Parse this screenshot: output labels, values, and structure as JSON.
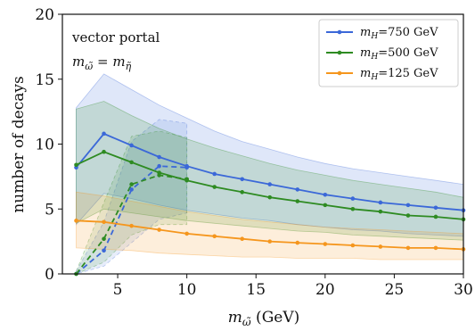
{
  "chart_data": {
    "type": "line",
    "xlabel": "m_ω̃ (GeV)",
    "xlabel_main": "m",
    "xlabel_sub": "ω̃",
    "xlabel_unit": " (GeV)",
    "ylabel": "number of decays",
    "xlim": [
      1,
      30
    ],
    "ylim": [
      0,
      20
    ],
    "xticks": [
      5,
      10,
      15,
      20,
      25,
      30
    ],
    "yticks": [
      0,
      5,
      10,
      15,
      20
    ],
    "grid": false,
    "legend_position": "top-right",
    "annotations": {
      "line1": "vector portal",
      "line2_main": "m",
      "line2_sub1": "ω̃",
      "line2_eq": " = ",
      "line2_main2": "m",
      "line2_sub2": "η̃"
    },
    "series": [
      {
        "name": "m_H=750 GeV",
        "legend_main": "m",
        "legend_sub": "H",
        "legend_value": "=750 GeV",
        "color": "#3b68d8",
        "solid": {
          "x": [
            2,
            4,
            6,
            8,
            10,
            12,
            14,
            16,
            18,
            20,
            22,
            24,
            26,
            28,
            30
          ],
          "y": [
            8.2,
            10.8,
            9.9,
            9.0,
            8.3,
            7.7,
            7.3,
            6.9,
            6.5,
            6.1,
            5.8,
            5.5,
            5.3,
            5.1,
            4.9
          ]
        },
        "dashed": {
          "x": [
            2,
            4,
            6,
            8,
            10
          ],
          "y": [
            0.0,
            1.8,
            6.5,
            8.3,
            8.2
          ]
        },
        "band_upper": {
          "x": [
            2,
            4,
            6,
            8,
            10,
            12,
            14,
            16,
            18,
            20,
            22,
            24,
            26,
            28,
            30
          ],
          "y": [
            12.8,
            15.4,
            14.2,
            13.0,
            12.0,
            11.0,
            10.2,
            9.6,
            9.0,
            8.5,
            8.1,
            7.8,
            7.5,
            7.2,
            6.9
          ]
        },
        "band_lower": {
          "x": [
            2,
            4,
            6,
            8,
            10,
            12,
            14,
            16,
            18,
            20,
            22,
            24,
            26,
            28,
            30
          ],
          "y": [
            3.8,
            6.2,
            5.8,
            5.3,
            4.9,
            4.6,
            4.3,
            4.1,
            3.8,
            3.6,
            3.4,
            3.3,
            3.1,
            3.0,
            2.9
          ]
        },
        "dband_upper": {
          "x": [
            2,
            4,
            6,
            8,
            10
          ],
          "y": [
            0.2,
            4.0,
            10.2,
            11.9,
            11.6
          ]
        },
        "dband_lower": {
          "x": [
            2,
            4,
            6,
            8,
            10
          ],
          "y": [
            0.0,
            0.6,
            2.4,
            4.2,
            4.7
          ]
        }
      },
      {
        "name": "m_H=500 GeV",
        "legend_main": "m",
        "legend_sub": "H",
        "legend_value": "=500 GeV",
        "color": "#2e8b22",
        "solid": {
          "x": [
            2,
            4,
            6,
            8,
            10,
            12,
            14,
            16,
            18,
            20,
            22,
            24,
            26,
            28,
            30
          ],
          "y": [
            8.4,
            9.4,
            8.6,
            7.8,
            7.2,
            6.7,
            6.3,
            5.9,
            5.6,
            5.3,
            5.0,
            4.8,
            4.5,
            4.4,
            4.2
          ]
        },
        "dashed": {
          "x": [
            2,
            4,
            6,
            8,
            10
          ],
          "y": [
            0.0,
            2.7,
            6.9,
            7.6,
            7.3
          ]
        },
        "band_upper": {
          "x": [
            2,
            4,
            6,
            8,
            10,
            12,
            14,
            16,
            18,
            20,
            22,
            24,
            26,
            28,
            30
          ],
          "y": [
            12.7,
            13.3,
            12.2,
            11.2,
            10.4,
            9.7,
            9.1,
            8.5,
            8.0,
            7.6,
            7.2,
            6.9,
            6.6,
            6.3,
            5.9
          ]
        },
        "band_lower": {
          "x": [
            2,
            4,
            6,
            8,
            10,
            12,
            14,
            16,
            18,
            20,
            22,
            24,
            26,
            28,
            30
          ],
          "y": [
            3.9,
            5.0,
            4.7,
            4.4,
            4.1,
            3.9,
            3.7,
            3.5,
            3.3,
            3.2,
            3.0,
            2.9,
            2.8,
            2.7,
            2.6
          ]
        },
        "dband_upper": {
          "x": [
            2,
            4,
            6,
            8,
            10
          ],
          "y": [
            0.2,
            5.5,
            10.6,
            11.0,
            10.5
          ]
        },
        "dband_lower": {
          "x": [
            2,
            4,
            6,
            8,
            10
          ],
          "y": [
            0.0,
            0.9,
            3.0,
            3.8,
            3.8
          ]
        }
      },
      {
        "name": "m_H=125 GeV",
        "legend_main": "m",
        "legend_sub": "H",
        "legend_value": "=125 GeV",
        "color": "#f5961d",
        "solid": {
          "x": [
            2,
            4,
            6,
            8,
            10,
            12,
            14,
            16,
            18,
            20,
            22,
            24,
            26,
            28,
            30
          ],
          "y": [
            4.1,
            4.0,
            3.7,
            3.4,
            3.1,
            2.9,
            2.7,
            2.5,
            2.4,
            2.3,
            2.2,
            2.1,
            2.0,
            2.0,
            1.9
          ]
        },
        "dashed": null,
        "band_upper": {
          "x": [
            2,
            4,
            6,
            8,
            10,
            12,
            14,
            16,
            18,
            20,
            22,
            24,
            26,
            28,
            30
          ],
          "y": [
            6.3,
            6.0,
            5.6,
            5.2,
            4.8,
            4.5,
            4.2,
            4.0,
            3.8,
            3.6,
            3.5,
            3.4,
            3.3,
            3.2,
            3.1
          ]
        },
        "band_lower": {
          "x": [
            2,
            4,
            6,
            8,
            10,
            12,
            14,
            16,
            18,
            20,
            22,
            24,
            26,
            28,
            30
          ],
          "y": [
            2.0,
            1.9,
            1.8,
            1.6,
            1.5,
            1.4,
            1.3,
            1.3,
            1.2,
            1.2,
            1.2,
            1.1,
            1.1,
            1.1,
            1.1
          ]
        },
        "dband_upper": null,
        "dband_lower": null
      }
    ]
  }
}
